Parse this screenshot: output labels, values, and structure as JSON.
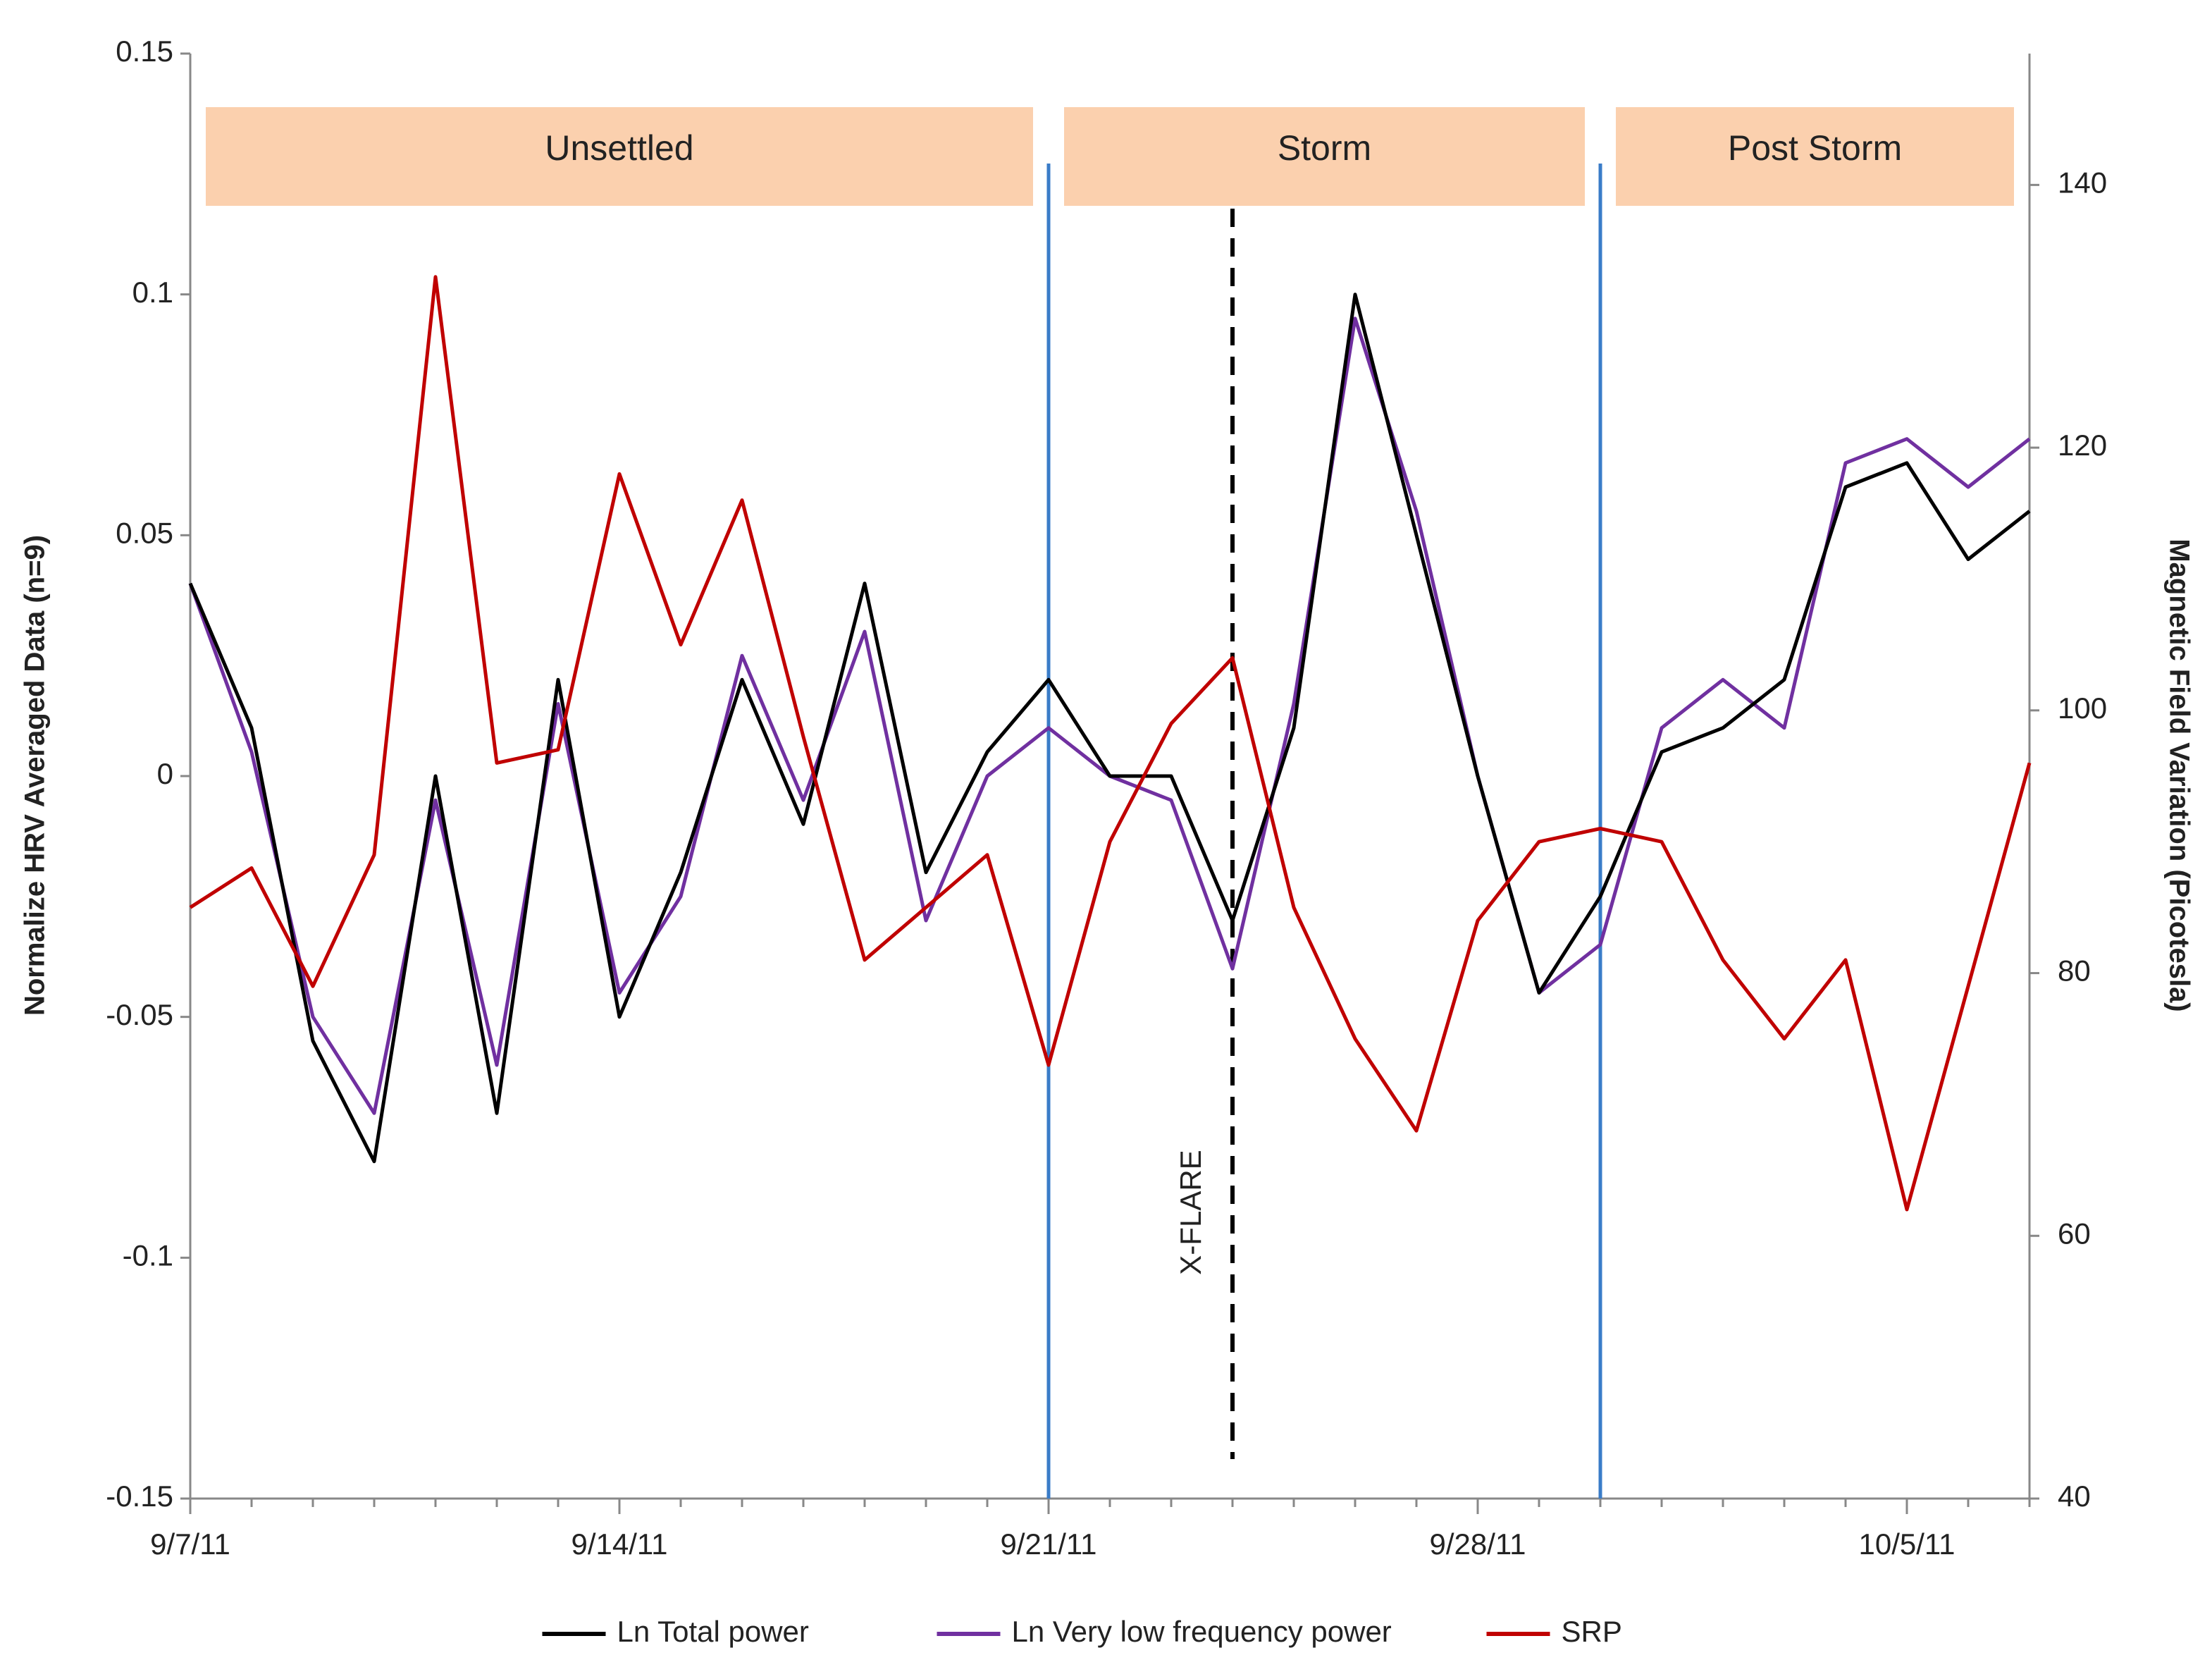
{
  "chart_data": {
    "type": "line",
    "y_label": "Normalize HRV Averaged Data (n=9)",
    "y2_label": "Magnetic Field Variation (Picotesla)",
    "x": [
      "9/7/11",
      "9/8/11",
      "9/9/11",
      "9/10/11",
      "9/11/11",
      "9/12/11",
      "9/13/11",
      "9/14/11",
      "9/15/11",
      "9/16/11",
      "9/17/11",
      "9/18/11",
      "9/19/11",
      "9/20/11",
      "9/21/11",
      "9/22/11",
      "9/23/11",
      "9/24/11",
      "9/25/11",
      "9/26/11",
      "9/27/11",
      "9/28/11",
      "9/29/11",
      "9/30/11",
      "10/1/11",
      "10/2/11",
      "10/3/11",
      "10/4/11",
      "10/5/11",
      "10/6/11",
      "10/7/11"
    ],
    "xlim": [
      "9/7/11",
      "10/7/11"
    ],
    "xticks": [
      "9/7/11",
      "9/14/11",
      "9/21/11",
      "9/28/11",
      "10/5/11"
    ],
    "ylim": [
      -0.15,
      0.15
    ],
    "yticks": [
      -0.15,
      -0.1,
      -0.05,
      0,
      0.05,
      0.1,
      0.15
    ],
    "y2lim": [
      40,
      150
    ],
    "y2ticks": [
      40,
      60,
      80,
      100,
      120,
      140
    ],
    "series": [
      {
        "name": "Ln Total power",
        "color": "#000000",
        "values": [
          0.04,
          0.01,
          -0.055,
          -0.08,
          0.0,
          -0.07,
          0.02,
          -0.05,
          -0.02,
          0.02,
          -0.01,
          0.04,
          -0.02,
          0.005,
          0.02,
          0.0,
          0.0,
          -0.03,
          0.01,
          0.1,
          0.05,
          0.0,
          -0.045,
          -0.025,
          0.005,
          0.01,
          0.02,
          0.06,
          0.065,
          0.045,
          0.055
        ]
      },
      {
        "name": "Ln Very low frequency power",
        "color": "#7030a0",
        "values": [
          0.04,
          0.005,
          -0.05,
          -0.07,
          -0.005,
          -0.06,
          0.015,
          -0.045,
          -0.025,
          0.025,
          -0.005,
          0.03,
          -0.03,
          0.0,
          0.01,
          0.0,
          -0.005,
          -0.04,
          0.015,
          0.095,
          0.055,
          0.0,
          -0.045,
          -0.035,
          0.01,
          0.02,
          0.01,
          0.065,
          0.07,
          0.06,
          0.07
        ]
      },
      {
        "name": "SRP",
        "color": "#c00000",
        "axis": "y2",
        "values": [
          85,
          88,
          79,
          89,
          133,
          96,
          97,
          118,
          105,
          116,
          98,
          81,
          85,
          89,
          73,
          90,
          99,
          104,
          85,
          75,
          68,
          84,
          90,
          91,
          90,
          81,
          75,
          81,
          62,
          79,
          96
        ]
      }
    ],
    "phases": [
      {
        "label": "Unsettled",
        "start": "9/7/11",
        "end": "9/21/11"
      },
      {
        "label": "Storm",
        "start": "9/21/11",
        "end": "9/30/11"
      },
      {
        "label": "Post Storm",
        "start": "9/30/11",
        "end": "10/7/11"
      }
    ],
    "dividers": [
      "9/21/11",
      "9/30/11"
    ],
    "event": {
      "label": "X-FLARE",
      "x": "9/24/11"
    },
    "legend": "bottom"
  }
}
